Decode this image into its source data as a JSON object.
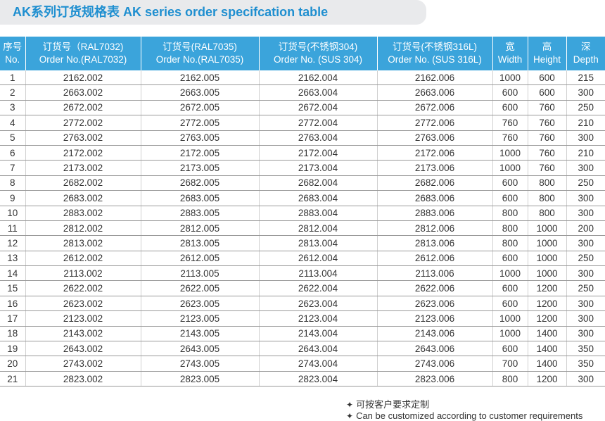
{
  "header": {
    "title": "AK系列订货规格表 AK series order specifcation table"
  },
  "table": {
    "columns": [
      {
        "zh": "序号",
        "en": "No."
      },
      {
        "zh": "订货号（RAL7032)",
        "en": "Order No.(RAL7032)"
      },
      {
        "zh": "订货号(RAL7035)",
        "en": "Order No.(RAL7035)"
      },
      {
        "zh": "订货号(不锈钢304)",
        "en": "Order No. (SUS 304)"
      },
      {
        "zh": "订货号(不锈钢316L)",
        "en": "Order No. (SUS 316L)"
      },
      {
        "zh": "宽",
        "en": "Width"
      },
      {
        "zh": "高",
        "en": "Height"
      },
      {
        "zh": "深",
        "en": "Depth"
      }
    ],
    "rows": [
      [
        "1",
        "2162.002",
        "2162.005",
        "2162.004",
        "2162.006",
        "1000",
        "600",
        "215"
      ],
      [
        "2",
        "2663.002",
        "2663.005",
        "2663.004",
        "2663.006",
        "600",
        "600",
        "300"
      ],
      [
        "3",
        "2672.002",
        "2672.005",
        "2672.004",
        "2672.006",
        "600",
        "760",
        "250"
      ],
      [
        "4",
        "2772.002",
        "2772.005",
        "2772.004",
        "2772.006",
        "760",
        "760",
        "210"
      ],
      [
        "5",
        "2763.002",
        "2763.005",
        "2763.004",
        "2763.006",
        "760",
        "760",
        "300"
      ],
      [
        "6",
        "2172.002",
        "2172.005",
        "2172.004",
        "2172.006",
        "1000",
        "760",
        "210"
      ],
      [
        "7",
        "2173.002",
        "2173.005",
        "2173.004",
        "2173.006",
        "1000",
        "760",
        "300"
      ],
      [
        "8",
        "2682.002",
        "2682.005",
        "2682.004",
        "2682.006",
        "600",
        "800",
        "250"
      ],
      [
        "9",
        "2683.002",
        "2683.005",
        "2683.004",
        "2683.006",
        "600",
        "800",
        "300"
      ],
      [
        "10",
        "2883.002",
        "2883.005",
        "2883.004",
        "2883.006",
        "800",
        "800",
        "300"
      ],
      [
        "11",
        "2812.002",
        "2812.005",
        "2812.004",
        "2812.006",
        "800",
        "1000",
        "200"
      ],
      [
        "12",
        "2813.002",
        "2813.005",
        "2813.004",
        "2813.006",
        "800",
        "1000",
        "300"
      ],
      [
        "13",
        "2612.002",
        "2612.005",
        "2612.004",
        "2612.006",
        "600",
        "1000",
        "250"
      ],
      [
        "14",
        "2113.002",
        "2113.005",
        "2113.004",
        "2113.006",
        "1000",
        "1000",
        "300"
      ],
      [
        "15",
        "2622.002",
        "2622.005",
        "2622.004",
        "2622.006",
        "600",
        "1200",
        "250"
      ],
      [
        "16",
        "2623.002",
        "2623.005",
        "2623.004",
        "2623.006",
        "600",
        "1200",
        "300"
      ],
      [
        "17",
        "2123.002",
        "2123.005",
        "2123.004",
        "2123.006",
        "1000",
        "1200",
        "300"
      ],
      [
        "18",
        "2143.002",
        "2143.005",
        "2143.004",
        "2143.006",
        "1000",
        "1400",
        "300"
      ],
      [
        "19",
        "2643.002",
        "2643.005",
        "2643.004",
        "2643.006",
        "600",
        "1400",
        "350"
      ],
      [
        "20",
        "2743.002",
        "2743.005",
        "2743.004",
        "2743.006",
        "700",
        "1400",
        "350"
      ],
      [
        "21",
        "2823.002",
        "2823.005",
        "2823.004",
        "2823.006",
        "800",
        "1200",
        "300"
      ]
    ]
  },
  "notes": [
    "可按客户要求定制",
    "Can be customized according to customer requirements"
  ]
}
